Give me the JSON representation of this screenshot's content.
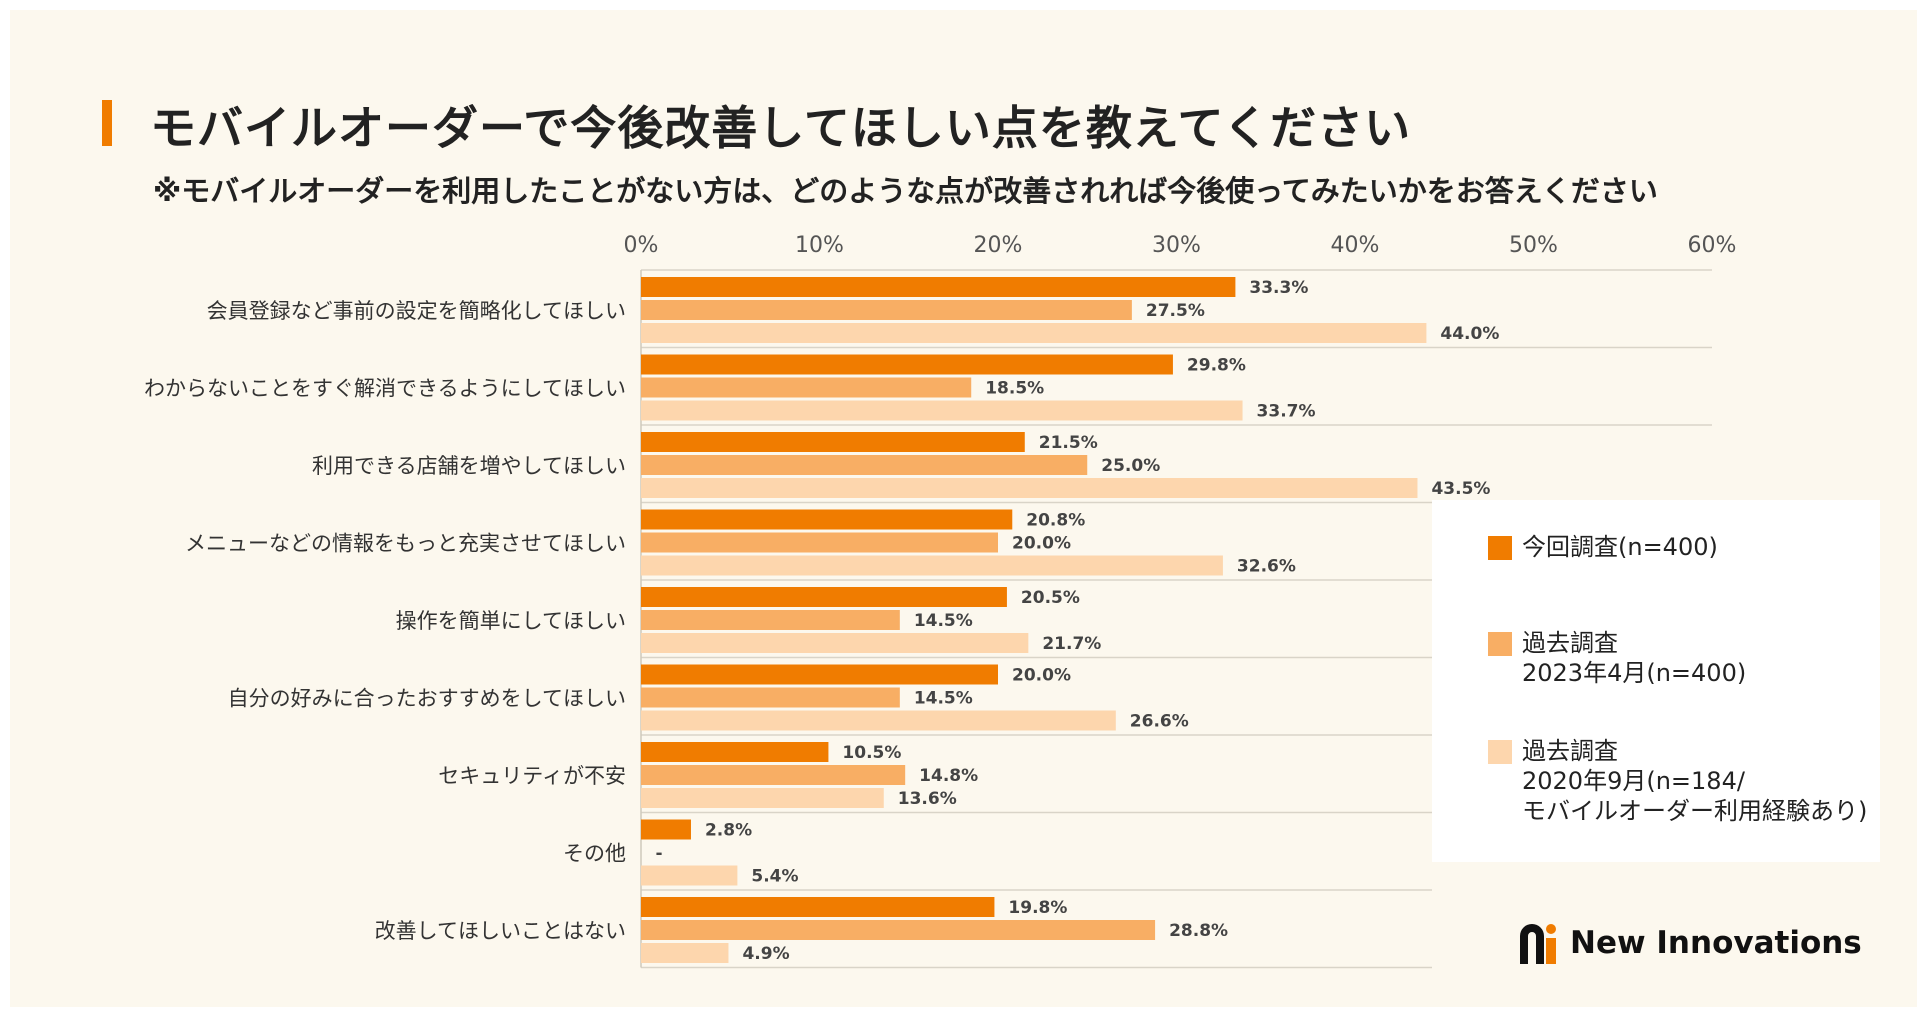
{
  "title": "モバイルオーダーで今後改善してほしい点を教えてください",
  "subtitle": "※モバイルオーダーを利用したことがない方は、どのような点が改善されれば今後使ってみたいかをお答えください",
  "colors": {
    "series_1": "#f07c00",
    "series_2": "#f8ae64",
    "series_3": "#fdd6ad",
    "title_accent": "#f07c00"
  },
  "chart_data": {
    "type": "bar",
    "orientation": "horizontal",
    "title": "モバイルオーダーで今後改善してほしい点を教えてください",
    "xlim": [
      0,
      60
    ],
    "x_ticks": [
      "0%",
      "10%",
      "20%",
      "30%",
      "40%",
      "50%",
      "60%"
    ],
    "x_tick_values": [
      0,
      10,
      20,
      30,
      40,
      50,
      60
    ],
    "categories": [
      "会員登録など事前の設定を簡略化してほしい",
      "わからないことをすぐ解消できるようにしてほしい",
      "利用できる店舗を増やしてほしい",
      "メニューなどの情報をもっと充実させてほしい",
      "操作を簡単にしてほしい",
      "自分の好みに合ったおすすめをしてほしい",
      "セキュリティが不安",
      "その他",
      "改善してほしいことはない"
    ],
    "series": [
      {
        "name": "今回調査(n=400)",
        "values": [
          33.3,
          29.8,
          21.5,
          20.8,
          20.5,
          20.0,
          10.5,
          2.8,
          19.8
        ],
        "labels": [
          "33.3%",
          "29.8%",
          "21.5%",
          "20.8%",
          "20.5%",
          "20.0%",
          "10.5%",
          "2.8%",
          "19.8%"
        ]
      },
      {
        "name": "過去調査 2023年4月(n=400)",
        "values": [
          27.5,
          18.5,
          25.0,
          20.0,
          14.5,
          14.5,
          14.8,
          null,
          28.8
        ],
        "labels": [
          "27.5%",
          "18.5%",
          "25.0%",
          "20.0%",
          "14.5%",
          "14.5%",
          "14.8%",
          "-",
          "28.8%"
        ]
      },
      {
        "name": "過去調査 2020年9月(n=184/モバイルオーダー利用経験あり)",
        "values": [
          44.0,
          33.7,
          43.5,
          32.6,
          21.7,
          26.6,
          13.6,
          5.4,
          4.9
        ],
        "labels": [
          "44.0%",
          "33.7%",
          "43.5%",
          "32.6%",
          "21.7%",
          "26.6%",
          "13.6%",
          "5.4%",
          "4.9%"
        ]
      }
    ],
    "legend_position": "right"
  },
  "legend": [
    {
      "lines": [
        "今回調査(n=400)"
      ]
    },
    {
      "lines": [
        "過去調査",
        " 2023年4月(n=400)"
      ]
    },
    {
      "lines": [
        "過去調査",
        "2020年9月(n=184/",
        "モバイルオーダー利用経験あり)"
      ]
    }
  ],
  "logo": {
    "text": "New Innovations",
    "icon": "new-innovations-logo-icon"
  }
}
